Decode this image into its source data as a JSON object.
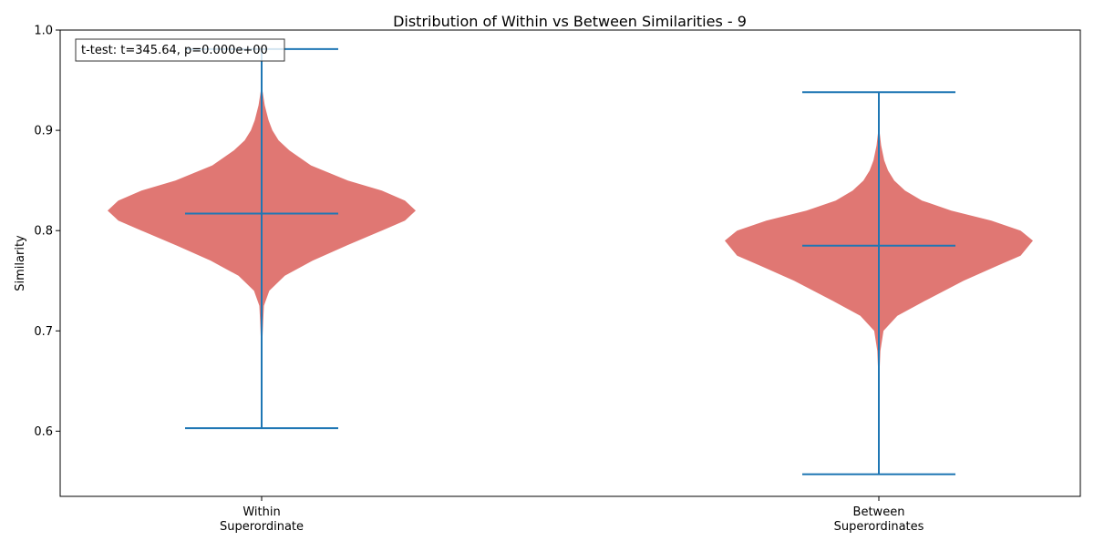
{
  "chart_data": {
    "type": "violin",
    "title": "Distribution of Within vs Between Similarities - 9",
    "xlabel": "",
    "ylabel": "Similarity",
    "ylim": [
      0.535,
      1.0
    ],
    "yticks": [
      "0.6",
      "0.7",
      "0.8",
      "0.9",
      "1.0"
    ],
    "annotation": "t-test: t=345.64, p=0.000e+00",
    "colors": {
      "violin": "#e07773",
      "lines": "#1f77b4"
    },
    "categories": [
      {
        "label_line1": "Within",
        "label_line2": "Superordinate"
      },
      {
        "label_line1": "Between",
        "label_line2": "Superordinates"
      }
    ],
    "violins": [
      {
        "min": 0.603,
        "max": 0.981,
        "mean": 0.817,
        "profile": [
          [
            0.668,
            0.0
          ],
          [
            0.69,
            0.005
          ],
          [
            0.71,
            0.01
          ],
          [
            0.725,
            0.015
          ],
          [
            0.74,
            0.05
          ],
          [
            0.755,
            0.15
          ],
          [
            0.77,
            0.33
          ],
          [
            0.785,
            0.55
          ],
          [
            0.8,
            0.78
          ],
          [
            0.81,
            0.93
          ],
          [
            0.82,
            1.0
          ],
          [
            0.83,
            0.93
          ],
          [
            0.84,
            0.78
          ],
          [
            0.85,
            0.56
          ],
          [
            0.865,
            0.32
          ],
          [
            0.88,
            0.18
          ],
          [
            0.89,
            0.11
          ],
          [
            0.9,
            0.07
          ],
          [
            0.91,
            0.045
          ],
          [
            0.925,
            0.02
          ],
          [
            0.945,
            0.0
          ]
        ]
      },
      {
        "min": 0.557,
        "max": 0.938,
        "mean": 0.785,
        "profile": [
          [
            0.635,
            0.0
          ],
          [
            0.66,
            0.005
          ],
          [
            0.68,
            0.01
          ],
          [
            0.7,
            0.03
          ],
          [
            0.715,
            0.12
          ],
          [
            0.73,
            0.3
          ],
          [
            0.75,
            0.55
          ],
          [
            0.765,
            0.77
          ],
          [
            0.775,
            0.92
          ],
          [
            0.79,
            1.0
          ],
          [
            0.8,
            0.92
          ],
          [
            0.81,
            0.73
          ],
          [
            0.82,
            0.47
          ],
          [
            0.83,
            0.28
          ],
          [
            0.84,
            0.17
          ],
          [
            0.85,
            0.1
          ],
          [
            0.86,
            0.06
          ],
          [
            0.87,
            0.035
          ],
          [
            0.885,
            0.015
          ],
          [
            0.905,
            0.0
          ]
        ]
      }
    ]
  }
}
